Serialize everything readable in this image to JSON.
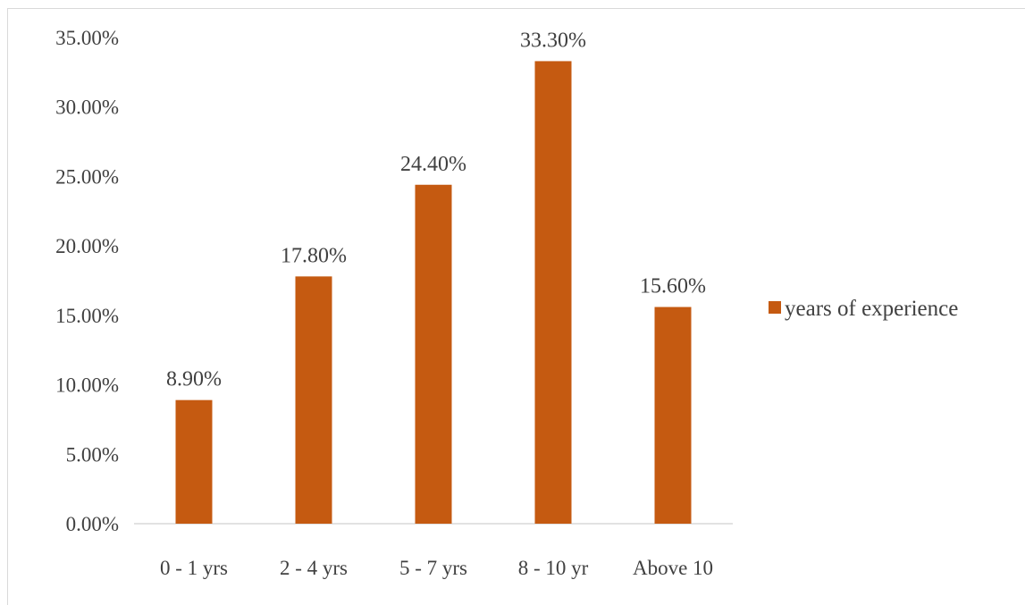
{
  "chart_data": {
    "type": "bar",
    "categories": [
      "0 - 1 yrs",
      "2 - 4 yrs",
      "5 - 7 yrs",
      "8 - 10 yr",
      "Above 10"
    ],
    "series": [
      {
        "name": "years of experience",
        "values": [
          8.9,
          17.8,
          24.4,
          33.3,
          15.6
        ]
      }
    ],
    "data_labels": [
      "8.90%",
      "17.80%",
      "24.40%",
      "33.30%",
      "15.60%"
    ],
    "y_ticks": [
      0,
      5,
      10,
      15,
      20,
      25,
      30,
      35
    ],
    "y_tick_labels": [
      "0.00%",
      "5.00%",
      "10.00%",
      "15.00%",
      "20.00%",
      "25.00%",
      "30.00%",
      "35.00%"
    ],
    "ylim": [
      0,
      35
    ],
    "title": "",
    "xlabel": "",
    "ylabel": "",
    "grid": false,
    "legend_position": "right",
    "bar_color": "#c55a11",
    "axis_color": "#d9d9d9",
    "text_color": "#404040"
  }
}
